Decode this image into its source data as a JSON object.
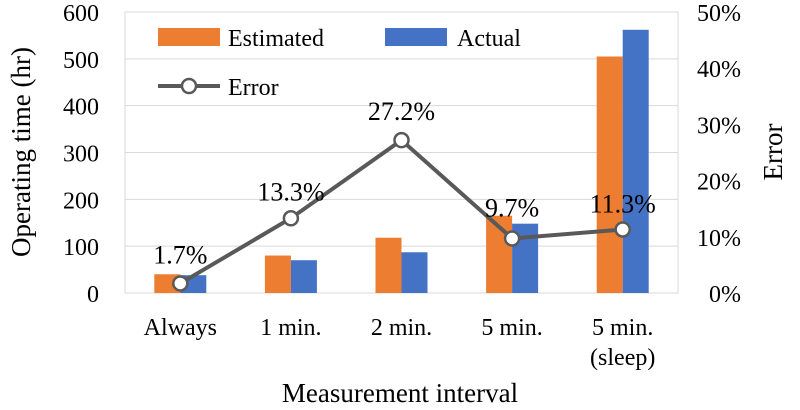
{
  "chart_data": {
    "type": "bar",
    "categories": [
      "Always",
      "1 min.",
      "2 min.",
      "5 min.",
      "5 min.\n(sleep)"
    ],
    "series": [
      {
        "name": "Estimated",
        "values": [
          40,
          80,
          118,
          165,
          505
        ],
        "color": "#ED7D31"
      },
      {
        "name": "Actual",
        "values": [
          38,
          70,
          87,
          148,
          562
        ],
        "color": "#4472C4"
      }
    ],
    "line_series": {
      "name": "Error",
      "values": [
        1.7,
        13.3,
        27.2,
        9.7,
        11.3
      ],
      "labels": [
        "1.7%",
        "13.3%",
        "27.2%",
        "9.7%",
        "11.3%"
      ],
      "color": "#595959"
    },
    "xlabel": "Measurement interval",
    "ylabel": "Operating time (hr)",
    "y2label": "Error",
    "ylim": [
      0,
      600
    ],
    "y2lim": [
      0,
      50
    ],
    "yticks": [
      0,
      100,
      200,
      300,
      400,
      500,
      600
    ],
    "y2ticks": [
      "0%",
      "10%",
      "20%",
      "30%",
      "40%",
      "50%"
    ],
    "grid": true,
    "legend_placement": "top-left"
  }
}
